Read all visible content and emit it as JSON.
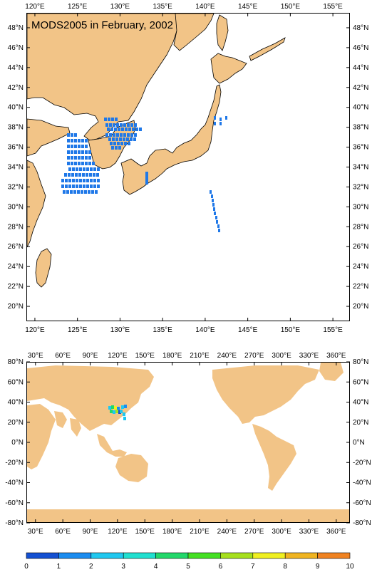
{
  "title": "MODS2005 in February, 2002",
  "colors": {
    "land": "#f2c487",
    "water": "#ffffff",
    "data_blue": "#1f78e8",
    "cyan": "#29d6d9",
    "green": "#33cc33",
    "yellow": "#e0e000",
    "orange": "#f08a2a"
  },
  "top_map": {
    "lon_range": [
      119,
      157
    ],
    "lat_range": [
      18.5,
      49.5
    ],
    "x_ticks": [
      "120°E",
      "125°E",
      "130°E",
      "135°E",
      "140°E",
      "145°E",
      "150°E",
      "155°E"
    ],
    "y_ticks": [
      "20°N",
      "22°N",
      "24°N",
      "26°N",
      "28°N",
      "30°N",
      "32°N",
      "34°N",
      "36°N",
      "38°N",
      "40°N",
      "42°N",
      "44°N",
      "46°N",
      "48°N"
    ]
  },
  "bottom_map": {
    "lon_range": [
      20,
      375
    ],
    "lat_range": [
      -80,
      80
    ],
    "x_ticks": [
      "30°E",
      "60°E",
      "90°E",
      "120°E",
      "150°E",
      "180°E",
      "210°E",
      "240°E",
      "270°E",
      "300°E",
      "330°E",
      "360°E"
    ],
    "y_ticks": [
      "-80°N",
      "-60°N",
      "-40°N",
      "-20°N",
      "0°N",
      "20°N",
      "40°N",
      "60°N",
      "80°N"
    ]
  },
  "colorbar": {
    "labels": [
      "0",
      "1",
      "2",
      "3",
      "4",
      "5",
      "6",
      "7",
      "8",
      "9",
      "10"
    ],
    "colors": [
      "#1450d2",
      "#1a8cf0",
      "#1fc8f0",
      "#20e0d0",
      "#22d86a",
      "#44e022",
      "#a6e01c",
      "#f0f020",
      "#f0b420",
      "#f08220"
    ]
  }
}
